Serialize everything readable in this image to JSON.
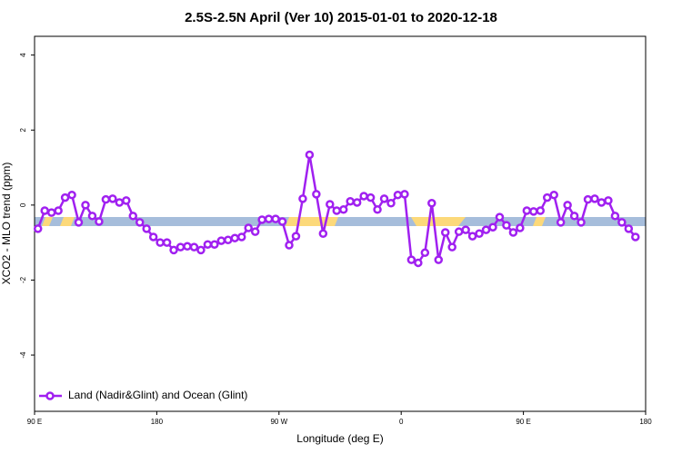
{
  "chart_data": {
    "type": "line",
    "title": "2.5S-2.5N April (Ver 10)   2015-01-01 to 2020-12-18",
    "x_label": "Longitude (deg E)",
    "y_label": "XCO2 - MLO trend (ppm)",
    "xlim": [
      90,
      540
    ],
    "ylim": [
      -5.5,
      4.5
    ],
    "xticks": [
      {
        "value": 90,
        "label": "90 E"
      },
      {
        "value": 180,
        "label": "180"
      },
      {
        "value": 270,
        "label": "90 W"
      },
      {
        "value": 360,
        "label": "0"
      },
      {
        "value": 450,
        "label": "90 E"
      },
      {
        "value": 540,
        "label": "180"
      }
    ],
    "yticks": [
      -4,
      -2,
      0,
      2,
      4
    ],
    "legend": "bottom-left",
    "x": [
      92.5,
      97.5,
      102.5,
      107.5,
      112.5,
      117.5,
      122.5,
      127.5,
      132.5,
      137.5,
      142.5,
      147.5,
      152.5,
      157.5,
      162.5,
      167.5,
      172.5,
      177.5,
      182.5,
      187.5,
      192.5,
      197.5,
      202.5,
      207.5,
      212.5,
      217.5,
      222.5,
      227.5,
      232.5,
      237.5,
      242.5,
      247.5,
      252.5,
      257.5,
      262.5,
      267.5,
      272.5,
      277.5,
      282.5,
      287.5,
      292.5,
      297.5,
      302.5,
      307.5,
      312.5,
      317.5,
      322.5,
      327.5,
      332.5,
      337.5,
      342.5,
      347.5,
      352.5,
      357.5,
      362.5,
      367.5,
      372.5,
      377.5,
      382.5,
      387.5,
      392.5,
      397.5,
      402.5,
      407.5,
      412.5,
      417.5,
      422.5,
      427.5,
      432.5,
      437.5,
      442.5,
      447.5,
      452.5,
      457.5,
      462.5,
      467.5,
      472.5,
      477.5,
      482.5,
      487.5,
      492.5,
      497.5,
      502.5,
      507.5,
      512.5,
      517.5,
      522.5,
      527.5,
      532.5
    ],
    "series": [
      {
        "name": "Land (Nadir&Glint) and Ocean (Glint)",
        "color": "#a020f0",
        "values": [
          -0.63,
          -0.15,
          -0.2,
          -0.15,
          0.2,
          0.27,
          -0.46,
          0,
          -0.29,
          -0.44,
          0.15,
          0.17,
          0.07,
          0.12,
          -0.29,
          -0.46,
          -0.63,
          -0.85,
          -1.0,
          -1.0,
          -1.2,
          -1.12,
          -1.1,
          -1.12,
          -1.2,
          -1.05,
          -1.05,
          -0.95,
          -0.93,
          -0.88,
          -0.85,
          -0.61,
          -0.71,
          -0.39,
          -0.37,
          -0.37,
          -0.44,
          -1.07,
          -0.83,
          0.17,
          1.34,
          0.29,
          -0.76,
          0.02,
          -0.15,
          -0.12,
          0.1,
          0.07,
          0.24,
          0.2,
          -0.12,
          0.17,
          0.05,
          0.27,
          0.29,
          -1.46,
          -1.54,
          -1.27,
          0.05,
          -1.46,
          -0.73,
          -1.12,
          -0.71,
          -0.66,
          -0.83,
          -0.76,
          -0.66,
          -0.59,
          -0.32,
          -0.54,
          -0.73,
          -0.61,
          -0.15,
          -0.17,
          -0.15,
          0.2,
          0.27,
          -0.46,
          0,
          -0.29,
          -0.46,
          0.15,
          0.17,
          0.07,
          0.12,
          -0.29,
          -0.46,
          -0.63,
          -0.85
        ]
      }
    ]
  }
}
